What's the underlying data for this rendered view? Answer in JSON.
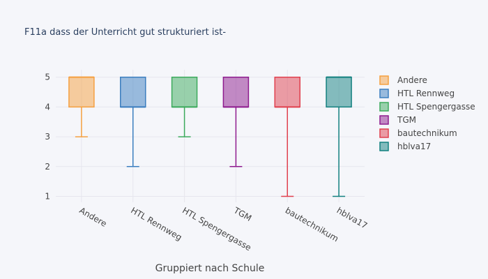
{
  "chart_data": {
    "type": "box",
    "title": "F11a dass der Unterricht gut strukturiert ist-",
    "xlabel": "Gruppiert nach Schule",
    "ylabel": "",
    "ylim": [
      0.8,
      5.25
    ],
    "yticks": [
      1,
      2,
      3,
      4,
      5
    ],
    "categories": [
      "Andere",
      "HTL Rennweg",
      "HTL Spengergasse",
      "TGM",
      "bautechnikum",
      "hblva17"
    ],
    "series": [
      {
        "name": "Andere",
        "min": 3,
        "q1": 4,
        "median": 5,
        "q3": 5,
        "max": 5,
        "color": "#f5a040"
      },
      {
        "name": "HTL Rennweg",
        "min": 2,
        "q1": 4,
        "median": 4,
        "q3": 5,
        "max": 5,
        "color": "#3b7ebf"
      },
      {
        "name": "HTL Spengergasse",
        "min": 3,
        "q1": 4,
        "median": 4,
        "q3": 5,
        "max": 5,
        "color": "#3caa5c"
      },
      {
        "name": "TGM",
        "min": 2,
        "q1": 4,
        "median": 4,
        "q3": 5,
        "max": 5,
        "color": "#8e1b8e"
      },
      {
        "name": "bautechnikum",
        "min": 1,
        "q1": 4,
        "median": 4,
        "q3": 5,
        "max": 5,
        "color": "#e0404e"
      },
      {
        "name": "hblva17",
        "min": 1,
        "q1": 4,
        "median": 5,
        "q3": 5,
        "max": 5,
        "color": "#12807f"
      }
    ],
    "grid": true,
    "legend_position": "right"
  }
}
